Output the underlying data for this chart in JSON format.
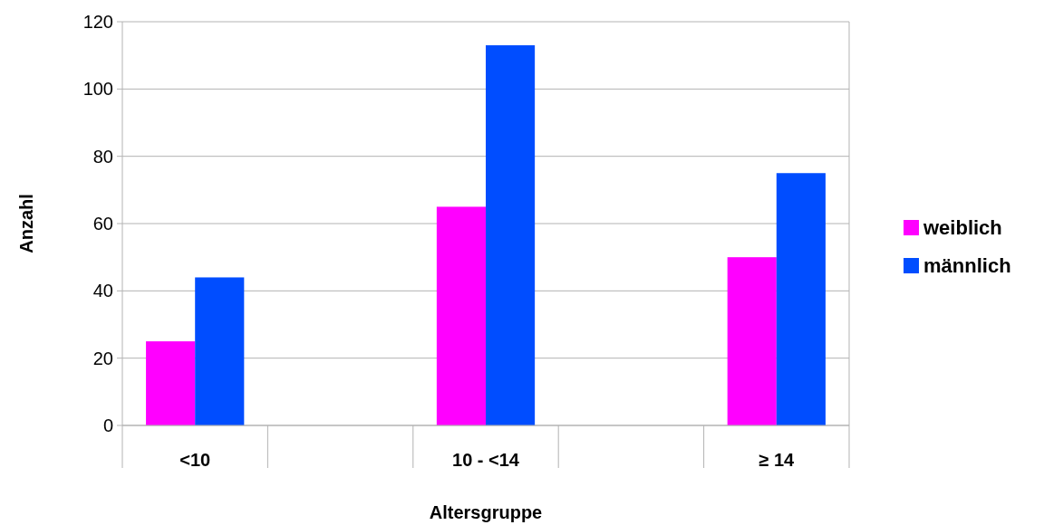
{
  "chart_data": {
    "type": "bar",
    "xlabel": "Altersgruppe",
    "ylabel": "Anzahl",
    "categories": [
      "<10",
      null,
      "10 - <14",
      null,
      "≥ 14"
    ],
    "series": [
      {
        "name": "weiblich",
        "color": "#ff00ff",
        "values": [
          25,
          null,
          65,
          null,
          50
        ]
      },
      {
        "name": "männlich",
        "color": "#004dff",
        "values": [
          44,
          null,
          113,
          null,
          75
        ]
      }
    ],
    "ylim": [
      0,
      120
    ],
    "yticks": [
      0,
      20,
      40,
      60,
      80,
      100,
      120
    ],
    "grid": "y",
    "legend": "right"
  }
}
